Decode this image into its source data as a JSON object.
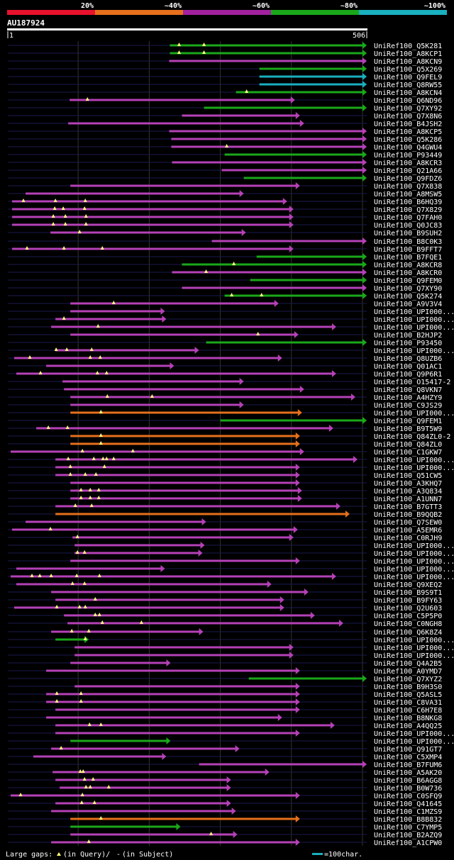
{
  "title": "AU187924",
  "scale": {
    "start": "1",
    "end": "506",
    "query_length": 506
  },
  "identity_legend": [
    {
      "label": "20%",
      "color": "#e8122d"
    },
    {
      "label": "~40%",
      "color": "#e6701c"
    },
    {
      "label": "~60%",
      "color": "#a2219e"
    },
    {
      "label": "~80%",
      "color": "#1aa81a"
    },
    {
      "label": "~100%",
      "color": "#19b0c0"
    }
  ],
  "footer": {
    "gaps_text": "Large gaps: ",
    "gaps_query": "(in Query)/",
    "gaps_dash": "-",
    "gaps_subject": " (in Subject)",
    "scale_text": "=100char."
  },
  "colors": {
    "magenta": "#b541b7",
    "green": "#1aa81a",
    "cyan": "#19b0c0",
    "orange": "#e6701c",
    "marker": "#ffff80",
    "track": "#1a1a50",
    "grid": "#333333"
  },
  "hits": [
    {
      "label": "UniRef100_Q5K281",
      "color": "green",
      "start": 229,
      "end": 506,
      "markers": [
        242,
        277
      ]
    },
    {
      "label": "UniRef100_A8KCP1",
      "color": "green",
      "start": 229,
      "end": 506,
      "markers": [
        242,
        277
      ]
    },
    {
      "label": "UniRef100_A8KCN9",
      "color": "magenta",
      "start": 228,
      "end": 506,
      "markers": []
    },
    {
      "label": "UniRef100_Q5X269",
      "color": "green",
      "start": 355,
      "end": 506,
      "markers": []
    },
    {
      "label": "UniRef100_Q9FEL9",
      "color": "cyan",
      "start": 355,
      "end": 506,
      "markers": []
    },
    {
      "label": "UniRef100_Q8RW55",
      "color": "cyan",
      "start": 355,
      "end": 506,
      "markers": []
    },
    {
      "label": "UniRef100_A8KCN4",
      "color": "green",
      "start": 322,
      "end": 506,
      "markers": [
        337
      ]
    },
    {
      "label": "UniRef100_Q6ND96",
      "color": "magenta",
      "start": 88,
      "end": 405,
      "markers": [
        113
      ]
    },
    {
      "label": "UniRef100_Q7XY92",
      "color": "green",
      "start": 277,
      "end": 506,
      "markers": []
    },
    {
      "label": "UniRef100_Q7X8N6",
      "color": "magenta",
      "start": 246,
      "end": 412,
      "markers": []
    },
    {
      "label": "UniRef100_B4JSH2",
      "color": "magenta",
      "start": 86,
      "end": 418,
      "markers": []
    },
    {
      "label": "UniRef100_A8KCP5",
      "color": "magenta",
      "start": 228,
      "end": 506,
      "markers": []
    },
    {
      "label": "UniRef100_Q5K286",
      "color": "magenta",
      "start": 231,
      "end": 506,
      "markers": []
    },
    {
      "label": "UniRef100_Q4GWU4",
      "color": "magenta",
      "start": 231,
      "end": 506,
      "markers": [
        309
      ]
    },
    {
      "label": "UniRef100_P93449",
      "color": "green",
      "start": 306,
      "end": 506,
      "markers": []
    },
    {
      "label": "UniRef100_A8KCR3",
      "color": "magenta",
      "start": 232,
      "end": 506,
      "markers": []
    },
    {
      "label": "UniRef100_Q21A66",
      "color": "magenta",
      "start": 302,
      "end": 506,
      "markers": []
    },
    {
      "label": "UniRef100_Q9FDZ6",
      "color": "green",
      "start": 333,
      "end": 506,
      "markers": []
    },
    {
      "label": "UniRef100_Q7X838",
      "color": "magenta",
      "start": 89,
      "end": 412,
      "markers": []
    },
    {
      "label": "UniRef100_A8MSW5",
      "color": "magenta",
      "start": 26,
      "end": 333,
      "markers": []
    },
    {
      "label": "UniRef100_B6HQ39",
      "color": "magenta",
      "start": 7,
      "end": 394,
      "markers": [
        23,
        68,
        110
      ]
    },
    {
      "label": "UniRef100_Q7X829",
      "color": "magenta",
      "start": 7,
      "end": 403,
      "markers": [
        67,
        79,
        109
      ]
    },
    {
      "label": "UniRef100_Q7FAH0",
      "color": "magenta",
      "start": 7,
      "end": 403,
      "markers": [
        65,
        82,
        111
      ]
    },
    {
      "label": "UniRef100_Q0JC83",
      "color": "magenta",
      "start": 7,
      "end": 403,
      "markers": [
        65,
        82,
        111
      ]
    },
    {
      "label": "UniRef100_B9SUH2",
      "color": "magenta",
      "start": 61,
      "end": 336,
      "markers": [
        102
      ]
    },
    {
      "label": "UniRef100_B8C0K3",
      "color": "magenta",
      "start": 288,
      "end": 506,
      "markers": []
    },
    {
      "label": "UniRef100_B9FFT7",
      "color": "magenta",
      "start": 7,
      "end": 403,
      "markers": [
        28,
        80,
        134
      ]
    },
    {
      "label": "UniRef100_B7FQE1",
      "color": "green",
      "start": 351,
      "end": 506,
      "markers": []
    },
    {
      "label": "UniRef100_A8KCR8",
      "color": "green",
      "start": 246,
      "end": 506,
      "markers": [
        319
      ]
    },
    {
      "label": "UniRef100_A8KCR0",
      "color": "magenta",
      "start": 232,
      "end": 506,
      "markers": [
        280
      ]
    },
    {
      "label": "UniRef100_Q9FEM0",
      "color": "green",
      "start": 342,
      "end": 506,
      "markers": []
    },
    {
      "label": "UniRef100_Q7XY90",
      "color": "magenta",
      "start": 246,
      "end": 506,
      "markers": []
    },
    {
      "label": "UniRef100_Q5K274",
      "color": "green",
      "start": 306,
      "end": 506,
      "markers": [
        316,
        358
      ]
    },
    {
      "label": "UniRef100_A9V3V4",
      "color": "magenta",
      "start": 89,
      "end": 382,
      "markers": [
        150
      ]
    },
    {
      "label": "UniRef100_UPI000...a",
      "color": "magenta",
      "start": 89,
      "end": 222,
      "markers": []
    },
    {
      "label": "UniRef100_UPI000...b",
      "color": "magenta",
      "start": 68,
      "end": 224,
      "markers": [
        80
      ]
    },
    {
      "label": "UniRef100_UPI000...c",
      "color": "magenta",
      "start": 62,
      "end": 463,
      "markers": [
        128
      ]
    },
    {
      "label": "UniRef100_B2HJP2",
      "color": "magenta",
      "start": 89,
      "end": 410,
      "markers": [
        353
      ]
    },
    {
      "label": "UniRef100_P93450",
      "color": "green",
      "start": 280,
      "end": 506,
      "markers": []
    },
    {
      "label": "UniRef100_UPI000...d",
      "color": "magenta",
      "start": 68,
      "end": 270,
      "markers": [
        69,
        84,
        119
      ]
    },
    {
      "label": "UniRef100_Q8UZB6",
      "color": "magenta",
      "start": 10,
      "end": 387,
      "markers": [
        32,
        117,
        131
      ]
    },
    {
      "label": "UniRef100_Q01AC1",
      "color": "magenta",
      "start": 55,
      "end": 235,
      "markers": []
    },
    {
      "label": "UniRef100_Q9P6R1",
      "color": "magenta",
      "start": 13,
      "end": 463,
      "markers": [
        47,
        127,
        140
      ]
    },
    {
      "label": "UniRef100_O15417-2",
      "color": "magenta",
      "start": 78,
      "end": 333,
      "markers": []
    },
    {
      "label": "UniRef100_Q8VKN7",
      "color": "magenta",
      "start": 80,
      "end": 418,
      "markers": []
    },
    {
      "label": "UniRef100_A4HZY9",
      "color": "magenta",
      "start": 89,
      "end": 490,
      "markers": [
        141,
        204
      ]
    },
    {
      "label": "UniRef100_C9JS29",
      "color": "magenta",
      "start": 89,
      "end": 333,
      "markers": []
    },
    {
      "label": "UniRef100_UPI000...e",
      "color": "orange",
      "start": 89,
      "end": 415,
      "markers": [
        132
      ]
    },
    {
      "label": "UniRef100_Q9FEM1",
      "color": "green",
      "start": 300,
      "end": 506,
      "markers": []
    },
    {
      "label": "UniRef100_B9T5W9",
      "color": "magenta",
      "start": 41,
      "end": 459,
      "markers": [
        58,
        85
      ]
    },
    {
      "label": "UniRef100_Q84ZL0-2",
      "color": "orange",
      "start": 89,
      "end": 412,
      "markers": [
        132
      ]
    },
    {
      "label": "UniRef100_Q84ZL0",
      "color": "orange",
      "start": 89,
      "end": 412,
      "markers": [
        132
      ]
    },
    {
      "label": "UniRef100_C1GKW7",
      "color": "magenta",
      "start": 5,
      "end": 418,
      "markers": [
        106,
        177
      ]
    },
    {
      "label": "UniRef100_UPI000...f",
      "color": "magenta",
      "start": 68,
      "end": 493,
      "markers": [
        86,
        122,
        135,
        140,
        150
      ]
    },
    {
      "label": "UniRef100_UPI000...g",
      "color": "magenta",
      "start": 68,
      "end": 412,
      "markers": [
        89,
        137
      ]
    },
    {
      "label": "UniRef100_Q51CW5",
      "color": "magenta",
      "start": 68,
      "end": 412,
      "markers": [
        89,
        110,
        125
      ]
    },
    {
      "label": "UniRef100_A3KHQ7",
      "color": "magenta",
      "start": 89,
      "end": 412,
      "markers": []
    },
    {
      "label": "UniRef100_A3Q834",
      "color": "magenta",
      "start": 89,
      "end": 415,
      "markers": [
        104,
        117,
        129
      ]
    },
    {
      "label": "UniRef100_A1UNN7",
      "color": "magenta",
      "start": 89,
      "end": 415,
      "markers": [
        104,
        117,
        129
      ]
    },
    {
      "label": "UniRef100_B7GTT3",
      "color": "magenta",
      "start": 68,
      "end": 469,
      "markers": [
        96,
        119
      ]
    },
    {
      "label": "UniRef100_B9QQB2",
      "color": "orange",
      "start": 68,
      "end": 482,
      "markers": []
    },
    {
      "label": "UniRef100_Q7SEW0",
      "color": "magenta",
      "start": 26,
      "end": 280,
      "markers": []
    },
    {
      "label": "UniRef100_A5EMR6",
      "color": "magenta",
      "start": 7,
      "end": 409,
      "markers": [
        61
      ]
    },
    {
      "label": "UniRef100_C0RJH9",
      "color": "magenta",
      "start": 92,
      "end": 403,
      "markers": [
        99
      ]
    },
    {
      "label": "UniRef100_UPI000...h",
      "color": "magenta",
      "start": 95,
      "end": 278,
      "markers": []
    },
    {
      "label": "UniRef100_UPI000...i",
      "color": "magenta",
      "start": 95,
      "end": 275,
      "markers": [
        99,
        109
      ]
    },
    {
      "label": "UniRef100_UPI000...j",
      "color": "magenta",
      "start": 89,
      "end": 412,
      "markers": []
    },
    {
      "label": "UniRef100_UPI000...k",
      "color": "magenta",
      "start": 13,
      "end": 222,
      "markers": []
    },
    {
      "label": "UniRef100_UPI000...l",
      "color": "magenta",
      "start": 5,
      "end": 463,
      "markers": [
        35,
        46,
        62,
        98,
        130
      ]
    },
    {
      "label": "UniRef100_Q9XEQ2",
      "color": "magenta",
      "start": 13,
      "end": 372,
      "markers": [
        92,
        109
      ]
    },
    {
      "label": "UniRef100_B9S9T1",
      "color": "magenta",
      "start": 62,
      "end": 424,
      "markers": []
    },
    {
      "label": "UniRef100_B9FY63",
      "color": "magenta",
      "start": 68,
      "end": 390,
      "markers": [
        124
      ]
    },
    {
      "label": "UniRef100_Q2U603",
      "color": "magenta",
      "start": 10,
      "end": 390,
      "markers": [
        70,
        102,
        110
      ]
    },
    {
      "label": "UniRef100_C5P5P0",
      "color": "magenta",
      "start": 80,
      "end": 433,
      "markers": [
        124,
        130
      ]
    },
    {
      "label": "UniRef100_C0NGH8",
      "color": "magenta",
      "start": 85,
      "end": 473,
      "markers": [
        134,
        189
      ]
    },
    {
      "label": "UniRef100_Q6K8Z4",
      "color": "magenta",
      "start": 62,
      "end": 276,
      "markers": [
        91,
        115
      ]
    },
    {
      "label": "UniRef100_UPI000...m",
      "color": "green",
      "start": 68,
      "end": 115,
      "markers": [
        110
      ]
    },
    {
      "label": "UniRef100_UPI000...n",
      "color": "magenta",
      "start": 95,
      "end": 403,
      "markers": []
    },
    {
      "label": "UniRef100_UPI000...o",
      "color": "magenta",
      "start": 95,
      "end": 403,
      "markers": []
    },
    {
      "label": "UniRef100_Q4A2B5",
      "color": "magenta",
      "start": 89,
      "end": 230,
      "markers": []
    },
    {
      "label": "UniRef100_A0YMD7",
      "color": "magenta",
      "start": 55,
      "end": 412,
      "markers": []
    },
    {
      "label": "UniRef100_Q7XYZ2",
      "color": "green",
      "start": 340,
      "end": 506,
      "markers": []
    },
    {
      "label": "UniRef100_B9H3S0",
      "color": "magenta",
      "start": 95,
      "end": 412,
      "markers": []
    },
    {
      "label": "UniRef100_Q5ASL5",
      "color": "magenta",
      "start": 55,
      "end": 412,
      "markers": [
        70,
        104
      ]
    },
    {
      "label": "UniRef100_C8VA31",
      "color": "magenta",
      "start": 55,
      "end": 412,
      "markers": [
        70,
        104
      ]
    },
    {
      "label": "UniRef100_C6H7E8",
      "color": "magenta",
      "start": 68,
      "end": 412,
      "markers": []
    },
    {
      "label": "UniRef100_B8NKG8",
      "color": "magenta",
      "start": 55,
      "end": 387,
      "markers": []
    },
    {
      "label": "UniRef100_A4QQ25",
      "color": "magenta",
      "start": 68,
      "end": 461,
      "markers": [
        116,
        132
      ]
    },
    {
      "label": "UniRef100_UPI000...p",
      "color": "magenta",
      "start": 68,
      "end": 412,
      "markers": []
    },
    {
      "label": "UniRef100_UPI000...q",
      "color": "green",
      "start": 89,
      "end": 230,
      "markers": []
    },
    {
      "label": "UniRef100_Q91GT7",
      "color": "magenta",
      "start": 62,
      "end": 327,
      "markers": [
        76
      ]
    },
    {
      "label": "UniRef100_C5XMP4",
      "color": "magenta",
      "start": 37,
      "end": 224,
      "markers": []
    },
    {
      "label": "UniRef100_B7FUM6",
      "color": "magenta",
      "start": 270,
      "end": 506,
      "markers": []
    },
    {
      "label": "UniRef100_A5AK20",
      "color": "magenta",
      "start": 64,
      "end": 369,
      "markers": [
        103,
        107
      ]
    },
    {
      "label": "UniRef100_B6AGG8",
      "color": "magenta",
      "start": 68,
      "end": 315,
      "markers": [
        109,
        121
      ]
    },
    {
      "label": "UniRef100_B0W736",
      "color": "magenta",
      "start": 74,
      "end": 315,
      "markers": [
        111,
        117,
        143
      ]
    },
    {
      "label": "UniRef100_C0SFQ9",
      "color": "magenta",
      "start": 5,
      "end": 412,
      "markers": [
        19,
        106
      ]
    },
    {
      "label": "UniRef100_Q41645",
      "color": "magenta",
      "start": 68,
      "end": 315,
      "markers": [
        105,
        123
      ]
    },
    {
      "label": "UniRef100_C1MZS9",
      "color": "magenta",
      "start": 62,
      "end": 322,
      "markers": []
    },
    {
      "label": "UniRef100_B8B832",
      "color": "orange",
      "start": 89,
      "end": 412,
      "markers": [
        132
      ]
    },
    {
      "label": "UniRef100_C7YMP5",
      "color": "green",
      "start": 89,
      "end": 244,
      "markers": []
    },
    {
      "label": "UniRef100_B2AZQ9",
      "color": "magenta",
      "start": 89,
      "end": 324,
      "markers": [
        287
      ]
    },
    {
      "label": "UniRef100_A1CPW0",
      "color": "magenta",
      "start": 62,
      "end": 412,
      "markers": [
        115
      ]
    }
  ]
}
